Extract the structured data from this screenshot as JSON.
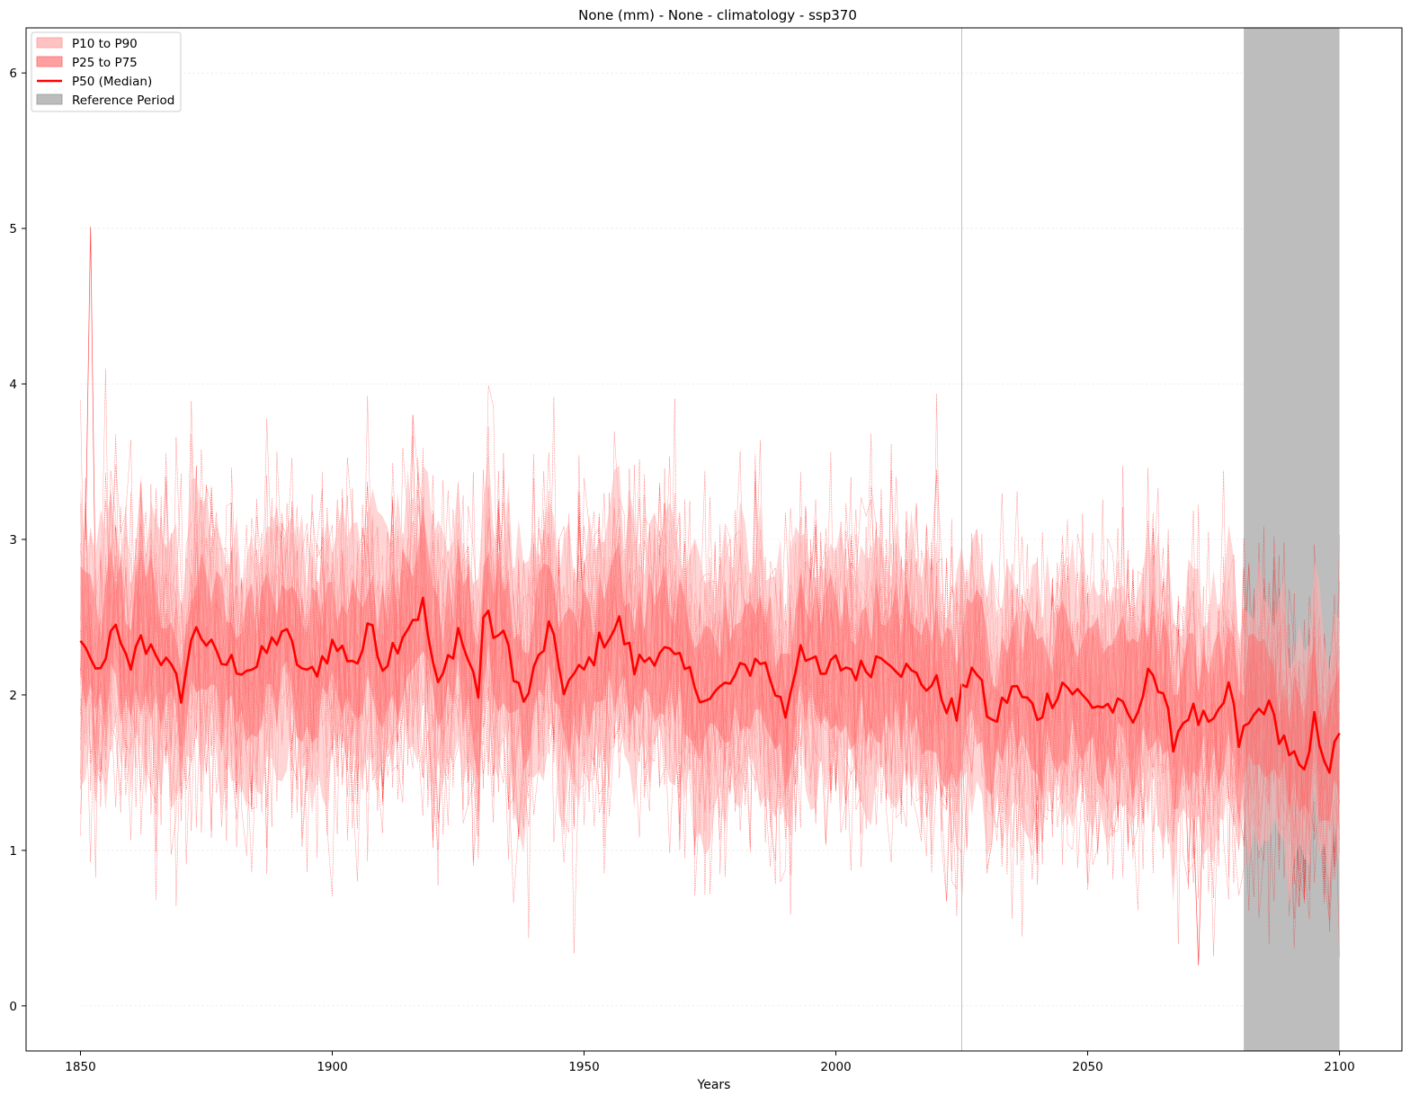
{
  "chart_data": {
    "type": "line",
    "title": "None (mm) - None - climatology  - ssp370",
    "xlabel": "Years",
    "ylabel": "",
    "xlim": [
      1839.2,
      2112.4
    ],
    "ylim": [
      -0.29,
      6.29
    ],
    "x_ticks": [
      1850,
      1900,
      1950,
      2000,
      2050,
      2100
    ],
    "y_ticks": [
      0,
      1,
      2,
      3,
      4,
      5,
      6
    ],
    "horizontal_gridlines": [
      0,
      1,
      2,
      3,
      4,
      5,
      6
    ],
    "vertical_marker_year": 2025,
    "reference_period": [
      2081,
      2100
    ],
    "x_start": 1850,
    "x_end": 2100,
    "legend_position": "top-left",
    "legend": [
      {
        "label": "P10 to P90",
        "kind": "patch",
        "color": "#ffb3b3"
      },
      {
        "label": "P25 to P75",
        "kind": "patch",
        "color": "#ff8080"
      },
      {
        "label": "P50 (Median)",
        "kind": "line",
        "color": "#ff0000"
      },
      {
        "label": "Reference Period",
        "kind": "patch",
        "color": "#a9a9a9"
      }
    ],
    "colors": {
      "median": "#ff0000",
      "band_outer": "#ffb3b3",
      "band_inner": "#ff6666",
      "members": "#ff0000",
      "reference": "#a0a0a0",
      "marker": "#c0c0c0"
    },
    "median_keypoints": [
      [
        1850,
        2.32
      ],
      [
        1851,
        2.34
      ],
      [
        1853,
        2.08
      ],
      [
        1855,
        2.2
      ],
      [
        1856,
        2.47
      ],
      [
        1860,
        2.12
      ],
      [
        1861,
        2.34
      ],
      [
        1865,
        2.3
      ],
      [
        1870,
        2.02
      ],
      [
        1873,
        2.46
      ],
      [
        1877,
        2.22
      ],
      [
        1880,
        2.2
      ],
      [
        1885,
        2.18
      ],
      [
        1890,
        2.42
      ],
      [
        1895,
        2.1
      ],
      [
        1900,
        2.32
      ],
      [
        1905,
        2.22
      ],
      [
        1908,
        2.46
      ],
      [
        1910,
        2.2
      ],
      [
        1915,
        2.46
      ],
      [
        1918,
        2.57
      ],
      [
        1921,
        2.02
      ],
      [
        1925,
        2.42
      ],
      [
        1929,
        2.02
      ],
      [
        1930,
        2.5
      ],
      [
        1935,
        2.3
      ],
      [
        1938,
        1.93
      ],
      [
        1943,
        2.42
      ],
      [
        1946,
        2.06
      ],
      [
        1950,
        2.15
      ],
      [
        1954,
        2.38
      ],
      [
        1957,
        2.45
      ],
      [
        1960,
        2.18
      ],
      [
        1965,
        2.3
      ],
      [
        1970,
        2.15
      ],
      [
        1975,
        1.97
      ],
      [
        1980,
        2.1
      ],
      [
        1985,
        2.25
      ],
      [
        1990,
        1.88
      ],
      [
        1993,
        2.35
      ],
      [
        1997,
        2.1
      ],
      [
        2000,
        2.2
      ],
      [
        2005,
        2.15
      ],
      [
        2010,
        2.28
      ],
      [
        2015,
        2.12
      ],
      [
        2020,
        2.05
      ],
      [
        2024,
        1.86
      ],
      [
        2027,
        2.22
      ],
      [
        2031,
        1.8
      ],
      [
        2035,
        2.05
      ],
      [
        2040,
        1.88
      ],
      [
        2045,
        2.08
      ],
      [
        2050,
        1.95
      ],
      [
        2055,
        1.92
      ],
      [
        2060,
        1.82
      ],
      [
        2062,
        2.25
      ],
      [
        2067,
        1.72
      ],
      [
        2070,
        1.9
      ],
      [
        2075,
        1.76
      ],
      [
        2078,
        2.05
      ],
      [
        2080,
        1.7
      ],
      [
        2085,
        1.95
      ],
      [
        2090,
        1.65
      ],
      [
        2093,
        1.44
      ],
      [
        2095,
        1.82
      ],
      [
        2098,
        1.55
      ],
      [
        2100,
        1.7
      ]
    ],
    "p10_to_p90_typical": [
      1.4,
      3.0
    ],
    "p25_to_p75_typical": [
      1.8,
      2.6
    ],
    "ensemble_max_peak": [
      1852,
      5.01
    ],
    "ensemble_min_trough": [
      2072,
      0.26
    ]
  }
}
